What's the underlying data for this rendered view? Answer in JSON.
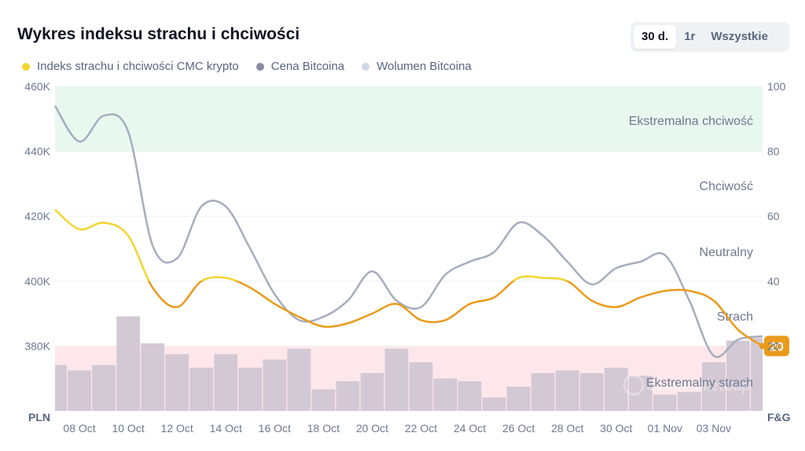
{
  "title": "Wykres indeksu strachu i chciwości",
  "range_tabs": [
    {
      "label": "30 d.",
      "active": true
    },
    {
      "label": "1r",
      "active": false
    },
    {
      "label": "Wszystkie",
      "active": false
    }
  ],
  "legend": [
    {
      "label": "Indeks strachu i chciwości CMC krypto",
      "color": "#f3d42f"
    },
    {
      "label": "Cena Bitcoina",
      "color": "#858ca2"
    },
    {
      "label": "Wolumen Bitcoina",
      "color": "#cfd6e4"
    }
  ],
  "chart_data": {
    "type": "line",
    "x_ticks": [
      "08 Oct",
      "10 Oct",
      "12 Oct",
      "14 Oct",
      "16 Oct",
      "18 Oct",
      "20 Oct",
      "22 Oct",
      "24 Oct",
      "26 Oct",
      "28 Oct",
      "30 Oct",
      "01 Nov",
      "03 Nov"
    ],
    "left_axis": {
      "label": "PLN",
      "ticks": [
        "460K",
        "440K",
        "420K",
        "400K",
        "380K"
      ],
      "range": [
        360000,
        460000
      ]
    },
    "right_axis": {
      "label": "F&G",
      "ticks": [
        "100",
        "80",
        "60",
        "40",
        "20"
      ],
      "range": [
        0,
        100
      ]
    },
    "zones": [
      {
        "label": "Ekstremalna chciwość",
        "range": [
          80,
          100
        ],
        "color": "#e8f8ef"
      },
      {
        "label": "Chciwość",
        "range": [
          60,
          80
        ],
        "color": ""
      },
      {
        "label": "Neutralny",
        "range": [
          40,
          60
        ],
        "color": ""
      },
      {
        "label": "Strach",
        "range": [
          20,
          40
        ],
        "color": ""
      },
      {
        "label": "Ekstremalny strach",
        "range": [
          0,
          20
        ],
        "color": "#fde7ea"
      }
    ],
    "x_days": [
      0,
      1,
      2,
      3,
      4,
      5,
      6,
      7,
      8,
      9,
      10,
      11,
      12,
      13,
      14,
      15,
      16,
      17,
      18,
      19,
      20,
      21,
      22,
      23,
      24,
      25,
      26,
      27,
      28,
      29
    ],
    "series": [
      {
        "name": "Indeks strachu i chciwości CMC krypto",
        "axis": "right",
        "values": [
          62,
          56,
          58,
          54,
          38,
          32,
          40,
          41,
          38,
          33,
          29,
          26,
          27,
          30,
          33,
          28,
          28,
          33,
          35,
          41,
          41,
          40,
          34,
          32,
          35,
          37,
          37,
          34,
          25,
          20
        ],
        "last_label": "20"
      },
      {
        "name": "Cena Bitcoina",
        "axis": "left",
        "values": [
          454000,
          443000,
          451000,
          446000,
          411000,
          407000,
          423000,
          423000,
          410000,
          396000,
          388000,
          389000,
          394000,
          403000,
          394000,
          392000,
          402000,
          406000,
          409000,
          418000,
          414000,
          406000,
          399000,
          404000,
          406000,
          408000,
          394000,
          377000,
          382000,
          383000
        ]
      },
      {
        "name": "Wolumen Bitcoina",
        "axis": "none",
        "values": [
          8.5,
          7.5,
          8.5,
          17.5,
          12.5,
          10.5,
          8,
          10.5,
          8,
          9.5,
          11.5,
          4,
          5.5,
          7,
          11.5,
          9,
          6,
          5.5,
          2.5,
          4.5,
          7,
          7.5,
          7,
          8,
          6.5,
          3,
          3.5,
          9,
          13,
          13.5
        ]
      }
    ],
    "watermark": "CoinMarketCap",
    "grid": true
  }
}
